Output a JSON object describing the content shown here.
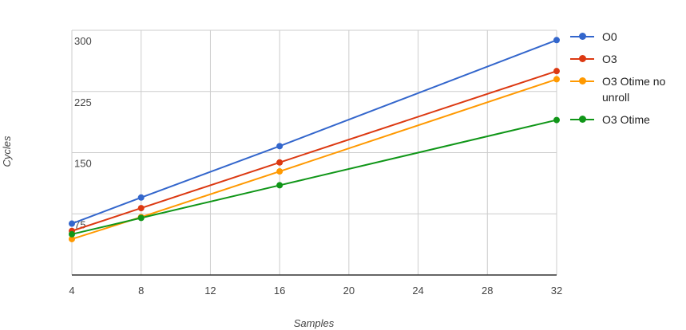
{
  "chart_data": {
    "type": "line",
    "x_label": "Samples",
    "y_label": "Cycles",
    "x": [
      4,
      8,
      16,
      32
    ],
    "series": [
      {
        "name": "O0",
        "color": "#3366cc",
        "values": [
          63,
          95,
          158,
          288
        ]
      },
      {
        "name": "O3",
        "color": "#dc3912",
        "values": [
          54,
          82,
          138,
          250
        ]
      },
      {
        "name": "O3 Otime no unroll",
        "color": "#ff9900",
        "values": [
          44,
          71,
          127,
          240
        ]
      },
      {
        "name": "O3 Otime",
        "color": "#109618",
        "values": [
          50,
          70,
          110,
          190
        ]
      }
    ],
    "xlim": [
      4,
      32
    ],
    "xticks": [
      4,
      8,
      12,
      16,
      20,
      24,
      28,
      32
    ],
    "ylim": [
      0,
      300
    ],
    "yticks": [
      75,
      150,
      225,
      300
    ],
    "grid": true,
    "legend": "right"
  }
}
